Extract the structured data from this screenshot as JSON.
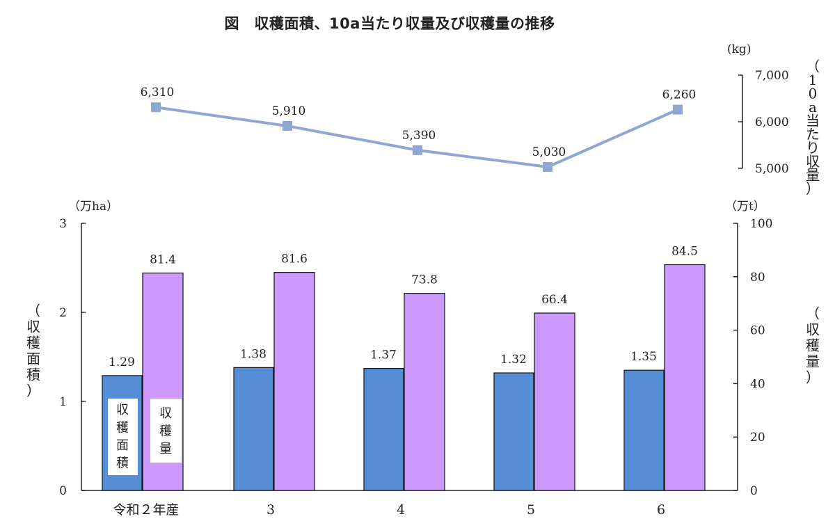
{
  "title": "図　収穫面積、10a当たり収量及び収穫量の推移",
  "chart_data": [
    {
      "type": "line",
      "categories": [
        "令和２年産",
        "3",
        "4",
        "5",
        "6"
      ],
      "series": [
        {
          "values": [
            6310,
            5910,
            5390,
            5030,
            6260
          ],
          "color": "#8EA7D3"
        }
      ],
      "data_labels": [
        "6,310",
        "5,910",
        "5,390",
        "5,030",
        "6,260"
      ],
      "y_axis": {
        "side": "right",
        "unit": "(kg)",
        "label": "（10a当たり収量）",
        "ylim": [
          5000,
          7000
        ],
        "ticks": [
          7000,
          6000,
          5000
        ],
        "tick_labels": [
          "7,000",
          "6,000",
          "5,000"
        ]
      },
      "grid": false
    },
    {
      "type": "bar",
      "categories": [
        "令和２年産",
        "3",
        "4",
        "5",
        "6"
      ],
      "series": [
        {
          "name": "収穫面積",
          "values": [
            1.29,
            1.38,
            1.37,
            1.32,
            1.35
          ],
          "data_labels": [
            "1.29",
            "1.38",
            "1.37",
            "1.32",
            "1.35"
          ],
          "axis": "left",
          "color": "#558ED5"
        },
        {
          "name": "収穫量",
          "values": [
            81.4,
            81.6,
            73.8,
            66.4,
            84.5
          ],
          "data_labels": [
            "81.4",
            "81.6",
            "73.8",
            "66.4",
            "84.5"
          ],
          "axis": "right",
          "color": "#CC99FF"
        }
      ],
      "y_axis_left": {
        "unit": "（万ha）",
        "label": "（収穫面積）",
        "ylim": [
          0,
          3
        ],
        "ticks": [
          0,
          1,
          2,
          3
        ],
        "tick_labels": [
          "0",
          "1",
          "2",
          "3"
        ]
      },
      "y_axis_right": {
        "unit": "（万t）",
        "label": "（収穫量）",
        "ylim": [
          0,
          100
        ],
        "ticks": [
          0,
          20,
          40,
          60,
          80,
          100
        ],
        "tick_labels": [
          "0",
          "20",
          "40",
          "60",
          "80",
          "100"
        ]
      },
      "legend": "inside-first-bars",
      "grid": false
    }
  ]
}
